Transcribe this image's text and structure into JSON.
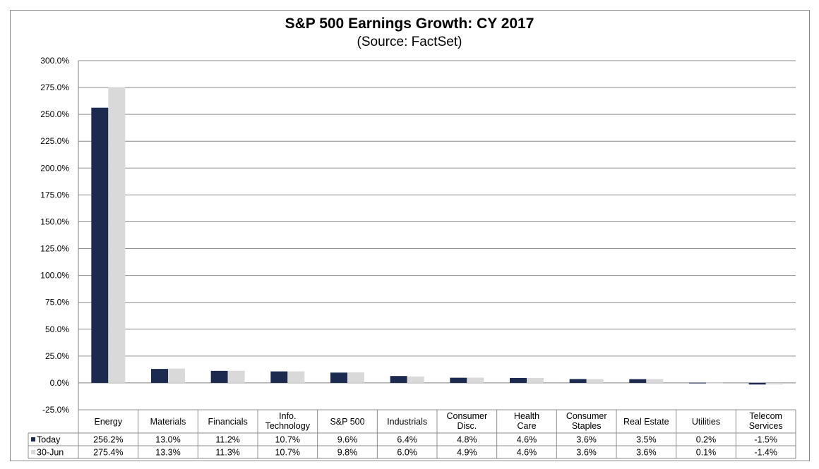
{
  "chart_data": {
    "type": "bar",
    "title": "S&P 500 Earnings Growth: CY 2017",
    "subtitle": "(Source: FactSet)",
    "xlabel": "",
    "ylabel": "",
    "ylim": [
      -25,
      300
    ],
    "yticks": [
      "300.0%",
      "275.0%",
      "250.0%",
      "225.0%",
      "200.0%",
      "175.0%",
      "150.0%",
      "125.0%",
      "100.0%",
      "75.0%",
      "50.0%",
      "25.0%",
      "0.0%",
      "-25.0%"
    ],
    "ytick_values": [
      300,
      275,
      250,
      225,
      200,
      175,
      150,
      125,
      100,
      75,
      50,
      25,
      0,
      -25
    ],
    "grid": true,
    "legend": "in data table, left",
    "categories": [
      [
        "Energy"
      ],
      [
        "Materials"
      ],
      [
        "Financials"
      ],
      [
        "Info.",
        "Technology"
      ],
      [
        "S&P 500"
      ],
      [
        "Industrials"
      ],
      [
        "Consumer",
        "Disc."
      ],
      [
        "Health",
        "Care"
      ],
      [
        "Consumer",
        "Staples"
      ],
      [
        "Real Estate"
      ],
      [
        "Utilities"
      ],
      [
        "Telecom",
        "Services"
      ]
    ],
    "series": [
      {
        "name": "Today",
        "color": "#1b2a4e",
        "values": [
          256.2,
          13.0,
          11.2,
          10.7,
          9.6,
          6.4,
          4.8,
          4.6,
          3.6,
          3.5,
          0.2,
          -1.5
        ],
        "labels": [
          "256.2%",
          "13.0%",
          "11.2%",
          "10.7%",
          "9.6%",
          "6.4%",
          "4.8%",
          "4.6%",
          "3.6%",
          "3.5%",
          "0.2%",
          "-1.5%"
        ]
      },
      {
        "name": "30-Jun",
        "color": "#d9d9d9",
        "values": [
          275.4,
          13.3,
          11.3,
          10.7,
          9.8,
          6.0,
          4.9,
          4.6,
          3.6,
          3.6,
          0.1,
          -1.4
        ],
        "labels": [
          "275.4%",
          "13.3%",
          "11.3%",
          "10.7%",
          "9.8%",
          "6.0%",
          "4.9%",
          "4.6%",
          "3.6%",
          "3.6%",
          "0.1%",
          "-1.4%"
        ]
      }
    ]
  }
}
